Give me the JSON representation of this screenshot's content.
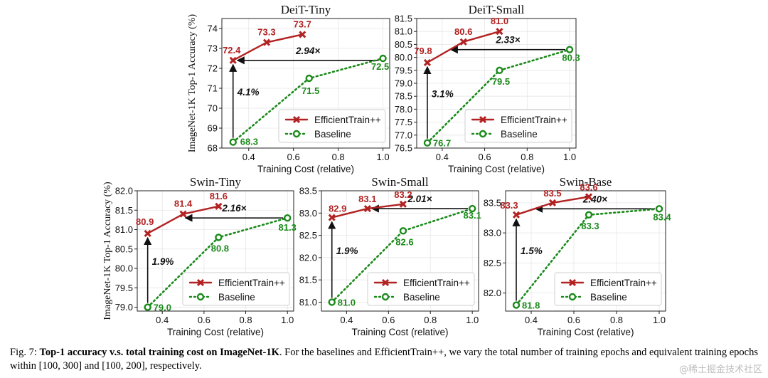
{
  "chart_data": [
    {
      "type": "line",
      "title": "DeiT-Tiny",
      "xlabel": "Training Cost (relative)",
      "ylabel": "ImageNet-1K Top-1 Accuracy (%)",
      "xlim": [
        0.28,
        1.03
      ],
      "ylim": [
        68,
        74.5
      ],
      "xticks": [
        0.4,
        0.6,
        0.8,
        1.0
      ],
      "xtick_labels": [
        "0.4",
        "0.6",
        "0.8",
        "1.0"
      ],
      "yticks": [
        68,
        69,
        70,
        71,
        72,
        73,
        74
      ],
      "ytick_labels": [
        "68",
        "69",
        "70",
        "71",
        "72",
        "73",
        "74"
      ],
      "grid": true,
      "legend_position": "lower-right",
      "series": [
        {
          "name": "EfficientTrain++",
          "color": "#b22222",
          "style": "solid",
          "marker": "x",
          "x": [
            0.33,
            0.48,
            0.64
          ],
          "y": [
            72.4,
            73.3,
            73.7
          ],
          "labels": [
            "72.4",
            "73.3",
            "73.7"
          ]
        },
        {
          "name": "Baseline",
          "color": "#1a8a1a",
          "style": "dotted",
          "marker": "o",
          "x": [
            0.33,
            0.67,
            1.0
          ],
          "y": [
            68.3,
            71.5,
            72.5
          ],
          "labels": [
            "68.3",
            "71.5",
            "72.5"
          ]
        }
      ],
      "annotations": [
        {
          "kind": "h-arrow",
          "y": 72.4,
          "x_from": 1.0,
          "x_to": 0.33,
          "text": "2.94×"
        },
        {
          "kind": "v-arrow",
          "x": 0.33,
          "y_from": 68.3,
          "y_to": 72.4,
          "text": "4.1%"
        }
      ]
    },
    {
      "type": "line",
      "title": "DeiT-Small",
      "xlabel": "Training Cost (relative)",
      "ylabel": "",
      "xlim": [
        0.28,
        1.03
      ],
      "ylim": [
        76.5,
        81.5
      ],
      "xticks": [
        0.4,
        0.6,
        0.8,
        1.0
      ],
      "xtick_labels": [
        "0.4",
        "0.6",
        "0.8",
        "1.0"
      ],
      "yticks": [
        76.5,
        77.0,
        77.5,
        78.0,
        78.5,
        79.0,
        79.5,
        80.0,
        80.5,
        81.0,
        81.5
      ],
      "ytick_labels": [
        "76.5",
        "77.0",
        "77.5",
        "78.0",
        "78.5",
        "79.0",
        "79.5",
        "80.0",
        "80.5",
        "81.0",
        "81.5"
      ],
      "grid": true,
      "legend_position": "lower-right",
      "series": [
        {
          "name": "EfficientTrain++",
          "color": "#b22222",
          "style": "solid",
          "marker": "x",
          "x": [
            0.33,
            0.5,
            0.67
          ],
          "y": [
            79.8,
            80.6,
            81.0
          ],
          "labels": [
            "79.8",
            "80.6",
            "81.0"
          ]
        },
        {
          "name": "Baseline",
          "color": "#1a8a1a",
          "style": "dotted",
          "marker": "o",
          "x": [
            0.33,
            0.67,
            1.0
          ],
          "y": [
            76.7,
            79.5,
            80.3
          ],
          "labels": [
            "76.7",
            "79.5",
            "80.3"
          ]
        }
      ],
      "annotations": [
        {
          "kind": "h-arrow",
          "y": 80.3,
          "x_from": 1.0,
          "x_to": 0.42,
          "text": "2.33×"
        },
        {
          "kind": "v-arrow",
          "x": 0.33,
          "y_from": 76.7,
          "y_to": 79.8,
          "text": "3.1%"
        }
      ]
    },
    {
      "type": "line",
      "title": "Swin-Tiny",
      "xlabel": "Training Cost (relative)",
      "ylabel": "ImageNet-1K Top-1 Accuracy (%)",
      "xlim": [
        0.28,
        1.03
      ],
      "ylim": [
        78.9,
        82.0
      ],
      "xticks": [
        0.4,
        0.6,
        0.8,
        1.0
      ],
      "xtick_labels": [
        "0.4",
        "0.6",
        "0.8",
        "1.0"
      ],
      "yticks": [
        79.0,
        79.5,
        80.0,
        80.5,
        81.0,
        81.5,
        82.0
      ],
      "ytick_labels": [
        "79.0",
        "79.5",
        "80.0",
        "80.5",
        "81.0",
        "81.5",
        "82.0"
      ],
      "grid": true,
      "legend_position": "lower-right",
      "series": [
        {
          "name": "EfficientTrain++",
          "color": "#b22222",
          "style": "solid",
          "marker": "x",
          "x": [
            0.33,
            0.5,
            0.67
          ],
          "y": [
            80.9,
            81.4,
            81.6
          ],
          "labels": [
            "80.9",
            "81.4",
            "81.6"
          ]
        },
        {
          "name": "Baseline",
          "color": "#1a8a1a",
          "style": "dotted",
          "marker": "o",
          "x": [
            0.33,
            0.67,
            1.0
          ],
          "y": [
            79.0,
            80.8,
            81.3
          ],
          "labels": [
            "79.0",
            "80.8",
            "81.3"
          ]
        }
      ],
      "annotations": [
        {
          "kind": "h-arrow",
          "y": 81.3,
          "x_from": 1.0,
          "x_to": 0.49,
          "text": "2.16×"
        },
        {
          "kind": "v-arrow",
          "x": 0.33,
          "y_from": 79.0,
          "y_to": 80.9,
          "text": "1.9%"
        }
      ]
    },
    {
      "type": "line",
      "title": "Swin-Small",
      "xlabel": "Training Cost (relative)",
      "ylabel": "",
      "xlim": [
        0.28,
        1.03
      ],
      "ylim": [
        80.8,
        83.5
      ],
      "xticks": [
        0.4,
        0.6,
        0.8,
        1.0
      ],
      "xtick_labels": [
        "0.4",
        "0.6",
        "0.8",
        "1.0"
      ],
      "yticks": [
        81.0,
        81.5,
        82.0,
        82.5,
        83.0,
        83.5
      ],
      "ytick_labels": [
        "81.0",
        "81.5",
        "82.0",
        "82.5",
        "83.0",
        "83.5"
      ],
      "grid": true,
      "legend_position": "lower-right",
      "series": [
        {
          "name": "EfficientTrain++",
          "color": "#b22222",
          "style": "solid",
          "marker": "x",
          "x": [
            0.33,
            0.5,
            0.67
          ],
          "y": [
            82.9,
            83.1,
            83.2
          ],
          "labels": [
            "82.9",
            "83.1",
            "83.2"
          ]
        },
        {
          "name": "Baseline",
          "color": "#1a8a1a",
          "style": "dotted",
          "marker": "o",
          "x": [
            0.33,
            0.67,
            1.0
          ],
          "y": [
            81.0,
            82.6,
            83.1
          ],
          "labels": [
            "81.0",
            "82.6",
            "83.1"
          ]
        }
      ],
      "annotations": [
        {
          "kind": "h-arrow",
          "y": 83.1,
          "x_from": 1.0,
          "x_to": 0.5,
          "text": "2.01×"
        },
        {
          "kind": "v-arrow",
          "x": 0.33,
          "y_from": 81.0,
          "y_to": 82.9,
          "text": "1.9%"
        }
      ]
    },
    {
      "type": "line",
      "title": "Swin-Base",
      "xlabel": "Training Cost (relative)",
      "ylabel": "",
      "xlim": [
        0.28,
        1.03
      ],
      "ylim": [
        81.7,
        83.7
      ],
      "xticks": [
        0.4,
        0.6,
        0.8,
        1.0
      ],
      "xtick_labels": [
        "0.4",
        "0.6",
        "0.8",
        "1.0"
      ],
      "yticks": [
        82.0,
        82.5,
        83.0,
        83.5
      ],
      "ytick_labels": [
        "82.0",
        "82.5",
        "83.0",
        "83.5"
      ],
      "grid": true,
      "legend_position": "lower-right",
      "series": [
        {
          "name": "EfficientTrain++",
          "color": "#b22222",
          "style": "solid",
          "marker": "x",
          "x": [
            0.33,
            0.5,
            0.67
          ],
          "y": [
            83.3,
            83.5,
            83.6
          ],
          "labels": [
            "83.3",
            "83.5",
            "83.6"
          ]
        },
        {
          "name": "Baseline",
          "color": "#1a8a1a",
          "style": "dotted",
          "marker": "o",
          "x": [
            0.33,
            0.67,
            1.0
          ],
          "y": [
            81.8,
            83.3,
            83.4
          ],
          "labels": [
            "81.8",
            "83.3",
            "83.4"
          ]
        }
      ],
      "annotations": [
        {
          "kind": "h-arrow",
          "y": 83.4,
          "x_from": 1.0,
          "x_to": 0.4,
          "text": "2.40×"
        },
        {
          "kind": "v-arrow",
          "x": 0.33,
          "y_from": 81.8,
          "y_to": 83.3,
          "text": "1.5%"
        }
      ]
    }
  ],
  "caption": {
    "prefix": "Fig. 7: ",
    "bold": "Top-1 accuracy v.s. total training cost on ImageNet-1K",
    "rest": ". For the baselines and EfficientTrain++, we vary the total number of training epochs and equivalent training epochs within [100, 300] and [100, 200], respectively."
  },
  "watermark": "@稀土掘金技术社区"
}
